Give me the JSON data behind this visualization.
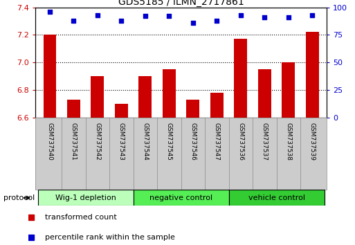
{
  "title": "GDS5185 / ILMN_2717861",
  "samples": [
    "GSM737540",
    "GSM737541",
    "GSM737542",
    "GSM737543",
    "GSM737544",
    "GSM737545",
    "GSM737546",
    "GSM737547",
    "GSM737536",
    "GSM737537",
    "GSM737538",
    "GSM737539"
  ],
  "transformed_counts": [
    7.2,
    6.73,
    6.9,
    6.7,
    6.9,
    6.95,
    6.73,
    6.78,
    7.17,
    6.95,
    7.0,
    7.22
  ],
  "percentile_ranks": [
    96,
    88,
    93,
    88,
    92,
    92,
    86,
    88,
    93,
    91,
    91,
    93
  ],
  "groups": [
    {
      "label": "Wig-1 depletion",
      "start": 0,
      "end": 4,
      "color": "#bbffbb"
    },
    {
      "label": "negative control",
      "start": 4,
      "end": 8,
      "color": "#55ee55"
    },
    {
      "label": "vehicle control",
      "start": 8,
      "end": 12,
      "color": "#33cc33"
    }
  ],
  "ylim_left": [
    6.6,
    7.4
  ],
  "yticks_left": [
    6.6,
    6.8,
    7.0,
    7.2,
    7.4
  ],
  "ylim_right": [
    0,
    100
  ],
  "yticks_right": [
    0,
    25,
    50,
    75,
    100
  ],
  "bar_color": "#cc0000",
  "dot_color": "#0000cc",
  "bar_width": 0.55,
  "background_color": "#ffffff",
  "plot_bg_color": "#ffffff",
  "grid_color": "#000000",
  "left_tick_color": "#cc0000",
  "right_tick_color": "#0000cc",
  "group_border_color": "#000000",
  "sample_bg_color": "#cccccc",
  "protocol_label": "protocol",
  "legend_red_label": "transformed count",
  "legend_blue_label": "percentile rank within the sample"
}
